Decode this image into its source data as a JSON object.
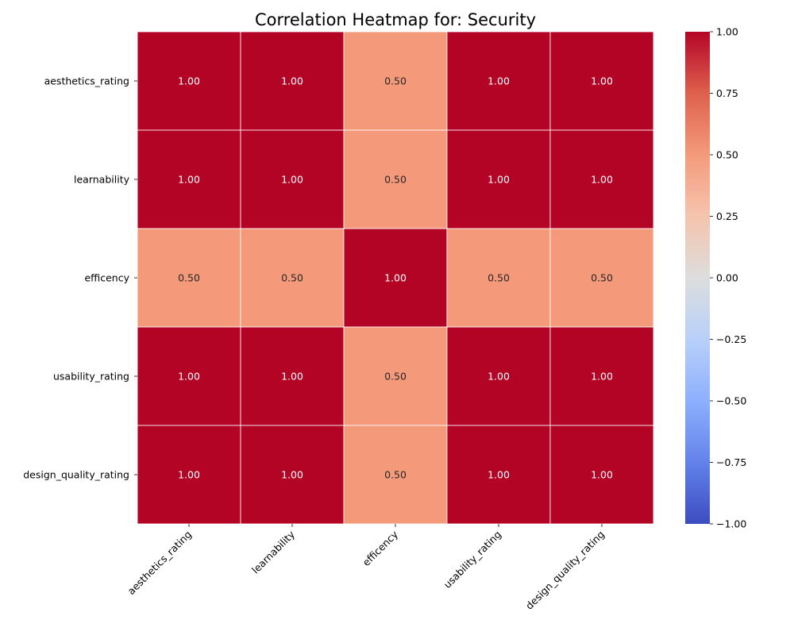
{
  "chart_data": {
    "type": "heatmap",
    "title": "Correlation Heatmap for: Security",
    "x_labels": [
      "aesthetics_rating",
      "learnability",
      "efficency",
      "usability_rating",
      "design_quality_rating"
    ],
    "y_labels": [
      "aesthetics_rating",
      "learnability",
      "efficency",
      "usability_rating",
      "design_quality_rating"
    ],
    "values": [
      [
        1.0,
        1.0,
        0.5,
        1.0,
        1.0
      ],
      [
        1.0,
        1.0,
        0.5,
        1.0,
        1.0
      ],
      [
        0.5,
        0.5,
        1.0,
        0.5,
        0.5
      ],
      [
        1.0,
        1.0,
        0.5,
        1.0,
        1.0
      ],
      [
        1.0,
        1.0,
        0.5,
        1.0,
        1.0
      ]
    ],
    "value_format": "0.00",
    "colormap": "coolwarm",
    "vmin": -1.0,
    "vmax": 1.0,
    "colorbar_ticks": [
      1.0,
      0.75,
      0.5,
      0.25,
      0.0,
      -0.25,
      -0.5,
      -0.75,
      -1.0
    ],
    "colorbar_tick_labels": [
      "1.00",
      "0.75",
      "0.50",
      "0.25",
      "0.00",
      "−0.25",
      "−0.50",
      "−0.75",
      "−1.00"
    ],
    "annotations": true,
    "grid": false,
    "cell_border_color": "#ffffff",
    "colors": {
      "low": "#3b4cc0",
      "mid": "#dddddd",
      "high": "#b40426"
    }
  }
}
